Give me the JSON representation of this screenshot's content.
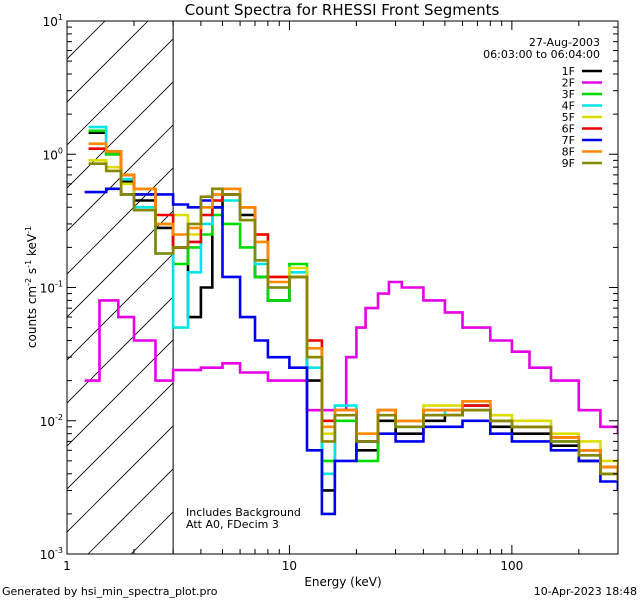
{
  "chart_data": {
    "type": "line",
    "title": "Count Spectra for RHESSI Front Segments",
    "xlabel": "Energy (keV)",
    "ylabel": {
      "base": "counts cm",
      "exp1": "-2",
      "mid": " s",
      "exp2": "-1",
      "unit": " keV",
      "exp3": "-1"
    },
    "xscale": "log",
    "yscale": "log",
    "xlim": [
      1,
      300
    ],
    "ylim": [
      0.001,
      10
    ],
    "x_ticks": [
      {
        "value": 1,
        "label": "1"
      },
      {
        "value": 10,
        "label": "10"
      },
      {
        "value": 100,
        "label": "100"
      }
    ],
    "y_ticks": [
      {
        "value": 0.001,
        "mant": "10",
        "exp": "-3"
      },
      {
        "value": 0.01,
        "mant": "10",
        "exp": "-2"
      },
      {
        "value": 0.1,
        "mant": "10",
        "exp": "-1"
      },
      {
        "value": 1,
        "mant": "10",
        "exp": "0"
      },
      {
        "value": 10,
        "mant": "10",
        "exp": "1"
      }
    ],
    "hatched_region": {
      "x_from": 1,
      "x_to": 3
    },
    "date": "27-Aug-2003",
    "time_range": "06:03:00 to 06:04:00",
    "annotations": [
      "Includes Background",
      "Att A0, FDecim 3"
    ],
    "series": [
      {
        "name": "1F",
        "color": "#000000",
        "points": [
          [
            1.25,
            1.45
          ],
          [
            1.5,
            1.0
          ],
          [
            1.75,
            0.62
          ],
          [
            2,
            0.45
          ],
          [
            2.5,
            0.28
          ],
          [
            3,
            0.2
          ],
          [
            3.5,
            0.06
          ],
          [
            4,
            0.1
          ],
          [
            4.5,
            0.4
          ],
          [
            5,
            0.5
          ],
          [
            6,
            0.35
          ],
          [
            7,
            0.12
          ],
          [
            8,
            0.08
          ],
          [
            10,
            0.12
          ],
          [
            12,
            0.02
          ],
          [
            14,
            0.003
          ],
          [
            16,
            0.012
          ],
          [
            20,
            0.006
          ],
          [
            25,
            0.01
          ],
          [
            30,
            0.008
          ],
          [
            40,
            0.01
          ],
          [
            50,
            0.011
          ],
          [
            60,
            0.012
          ],
          [
            80,
            0.009
          ],
          [
            100,
            0.008
          ],
          [
            150,
            0.0065
          ],
          [
            200,
            0.005
          ],
          [
            250,
            0.004
          ],
          [
            300,
            0.003
          ]
        ]
      },
      {
        "name": "2F",
        "color": "#e600e6",
        "points": [
          [
            1.2,
            0.02
          ],
          [
            1.3,
            0.02
          ],
          [
            1.4,
            0.08
          ],
          [
            1.6,
            0.08
          ],
          [
            1.7,
            0.06
          ],
          [
            2,
            0.04
          ],
          [
            2.5,
            0.02
          ],
          [
            3,
            0.024
          ],
          [
            4,
            0.025
          ],
          [
            5,
            0.027
          ],
          [
            6,
            0.023
          ],
          [
            8,
            0.02
          ],
          [
            10,
            0.02
          ],
          [
            12,
            0.012
          ],
          [
            15,
            0.012
          ],
          [
            18,
            0.03
          ],
          [
            20,
            0.05
          ],
          [
            22,
            0.07
          ],
          [
            25,
            0.09
          ],
          [
            28,
            0.11
          ],
          [
            32,
            0.1
          ],
          [
            40,
            0.08
          ],
          [
            50,
            0.065
          ],
          [
            60,
            0.05
          ],
          [
            80,
            0.04
          ],
          [
            100,
            0.033
          ],
          [
            120,
            0.025
          ],
          [
            150,
            0.02
          ],
          [
            200,
            0.012
          ],
          [
            250,
            0.009
          ],
          [
            300,
            0.008
          ]
        ]
      },
      {
        "name": "3F",
        "color": "#00dd00",
        "points": [
          [
            1.25,
            1.5
          ],
          [
            1.5,
            1.0
          ],
          [
            1.75,
            0.7
          ],
          [
            2,
            0.5
          ],
          [
            2.5,
            0.3
          ],
          [
            3,
            0.15
          ],
          [
            3.5,
            0.2
          ],
          [
            4,
            0.25
          ],
          [
            4.5,
            0.35
          ],
          [
            5,
            0.3
          ],
          [
            6,
            0.2
          ],
          [
            7,
            0.12
          ],
          [
            8,
            0.08
          ],
          [
            10,
            0.15
          ],
          [
            12,
            0.03
          ],
          [
            14,
            0.005
          ],
          [
            16,
            0.01
          ],
          [
            20,
            0.005
          ],
          [
            25,
            0.012
          ],
          [
            30,
            0.01
          ],
          [
            40,
            0.012
          ],
          [
            50,
            0.012
          ],
          [
            60,
            0.013
          ],
          [
            80,
            0.01
          ],
          [
            100,
            0.009
          ],
          [
            150,
            0.007
          ],
          [
            200,
            0.006
          ],
          [
            250,
            0.004
          ],
          [
            300,
            0.0035
          ]
        ]
      },
      {
        "name": "4F",
        "color": "#00e6e6",
        "points": [
          [
            1.25,
            1.6
          ],
          [
            1.5,
            1.05
          ],
          [
            1.75,
            0.65
          ],
          [
            2,
            0.4
          ],
          [
            2.5,
            0.18
          ],
          [
            3,
            0.05
          ],
          [
            3.5,
            0.13
          ],
          [
            4,
            0.3
          ],
          [
            4.5,
            0.45
          ],
          [
            5,
            0.45
          ],
          [
            6,
            0.32
          ],
          [
            7,
            0.15
          ],
          [
            8,
            0.1
          ],
          [
            10,
            0.13
          ],
          [
            12,
            0.025
          ],
          [
            14,
            0.004
          ],
          [
            16,
            0.013
          ],
          [
            20,
            0.007
          ],
          [
            25,
            0.012
          ],
          [
            30,
            0.009
          ],
          [
            40,
            0.011
          ],
          [
            50,
            0.012
          ],
          [
            60,
            0.013
          ],
          [
            80,
            0.01
          ],
          [
            100,
            0.009
          ],
          [
            150,
            0.007
          ],
          [
            200,
            0.0055
          ],
          [
            250,
            0.0045
          ],
          [
            300,
            0.0035
          ]
        ]
      },
      {
        "name": "5F",
        "color": "#dddd00",
        "points": [
          [
            1.25,
            0.9
          ],
          [
            1.5,
            0.8
          ],
          [
            1.75,
            0.6
          ],
          [
            2,
            0.5
          ],
          [
            2.5,
            0.3
          ],
          [
            3,
            0.35
          ],
          [
            3.5,
            0.25
          ],
          [
            4,
            0.4
          ],
          [
            4.5,
            0.5
          ],
          [
            5,
            0.55
          ],
          [
            6,
            0.4
          ],
          [
            7,
            0.25
          ],
          [
            8,
            0.12
          ],
          [
            10,
            0.14
          ],
          [
            12,
            0.03
          ],
          [
            14,
            0.008
          ],
          [
            16,
            0.012
          ],
          [
            20,
            0.008
          ],
          [
            25,
            0.012
          ],
          [
            30,
            0.01
          ],
          [
            40,
            0.013
          ],
          [
            50,
            0.013
          ],
          [
            60,
            0.014
          ],
          [
            80,
            0.011
          ],
          [
            100,
            0.01
          ],
          [
            150,
            0.008
          ],
          [
            200,
            0.007
          ],
          [
            250,
            0.005
          ],
          [
            300,
            0.004
          ]
        ]
      },
      {
        "name": "6F",
        "color": "#ee0000",
        "points": [
          [
            1.25,
            1.1
          ],
          [
            1.5,
            1.05
          ],
          [
            1.75,
            0.7
          ],
          [
            2,
            0.55
          ],
          [
            2.5,
            0.35
          ],
          [
            3,
            0.2
          ],
          [
            3.5,
            0.22
          ],
          [
            4,
            0.35
          ],
          [
            4.5,
            0.45
          ],
          [
            5,
            0.5
          ],
          [
            6,
            0.4
          ],
          [
            7,
            0.25
          ],
          [
            8,
            0.12
          ],
          [
            10,
            0.12
          ],
          [
            12,
            0.04
          ],
          [
            14,
            0.01
          ],
          [
            16,
            0.012
          ],
          [
            20,
            0.007
          ],
          [
            25,
            0.012
          ],
          [
            30,
            0.01
          ],
          [
            40,
            0.012
          ],
          [
            50,
            0.012
          ],
          [
            60,
            0.013
          ],
          [
            80,
            0.01
          ],
          [
            100,
            0.009
          ],
          [
            150,
            0.0075
          ],
          [
            200,
            0.006
          ],
          [
            250,
            0.0045
          ],
          [
            300,
            0.0035
          ]
        ]
      },
      {
        "name": "7F",
        "color": "#0000ee",
        "points": [
          [
            1.2,
            0.52
          ],
          [
            1.5,
            0.55
          ],
          [
            1.75,
            0.5
          ],
          [
            2,
            0.5
          ],
          [
            2.5,
            0.5
          ],
          [
            3,
            0.42
          ],
          [
            3.5,
            0.4
          ],
          [
            4,
            0.45
          ],
          [
            4.5,
            0.4
          ],
          [
            5,
            0.12
          ],
          [
            6,
            0.06
          ],
          [
            7,
            0.04
          ],
          [
            8,
            0.03
          ],
          [
            10,
            0.025
          ],
          [
            12,
            0.006
          ],
          [
            14,
            0.002
          ],
          [
            16,
            0.005
          ],
          [
            20,
            0.007
          ],
          [
            25,
            0.008
          ],
          [
            30,
            0.007
          ],
          [
            40,
            0.009
          ],
          [
            50,
            0.009
          ],
          [
            60,
            0.01
          ],
          [
            80,
            0.008
          ],
          [
            100,
            0.007
          ],
          [
            150,
            0.006
          ],
          [
            200,
            0.005
          ],
          [
            250,
            0.0035
          ],
          [
            300,
            0.003
          ]
        ]
      },
      {
        "name": "8F",
        "color": "#ff8800",
        "points": [
          [
            1.25,
            1.2
          ],
          [
            1.5,
            1.05
          ],
          [
            1.75,
            0.7
          ],
          [
            2,
            0.55
          ],
          [
            2.5,
            0.3
          ],
          [
            3,
            0.25
          ],
          [
            3.5,
            0.28
          ],
          [
            4,
            0.4
          ],
          [
            4.5,
            0.5
          ],
          [
            5,
            0.55
          ],
          [
            6,
            0.4
          ],
          [
            7,
            0.22
          ],
          [
            8,
            0.11
          ],
          [
            10,
            0.12
          ],
          [
            12,
            0.035
          ],
          [
            14,
            0.009
          ],
          [
            16,
            0.012
          ],
          [
            20,
            0.008
          ],
          [
            25,
            0.012
          ],
          [
            30,
            0.01
          ],
          [
            40,
            0.012
          ],
          [
            50,
            0.012
          ],
          [
            60,
            0.014
          ],
          [
            80,
            0.01
          ],
          [
            100,
            0.009
          ],
          [
            150,
            0.0075
          ],
          [
            200,
            0.006
          ],
          [
            250,
            0.0045
          ],
          [
            300,
            0.0035
          ]
        ]
      },
      {
        "name": "9F",
        "color": "#888800",
        "points": [
          [
            1.25,
            0.85
          ],
          [
            1.5,
            0.75
          ],
          [
            1.75,
            0.5
          ],
          [
            2,
            0.38
          ],
          [
            2.5,
            0.18
          ],
          [
            3,
            0.2
          ],
          [
            3.5,
            0.3
          ],
          [
            4,
            0.48
          ],
          [
            4.5,
            0.55
          ],
          [
            5,
            0.5
          ],
          [
            6,
            0.32
          ],
          [
            7,
            0.16
          ],
          [
            8,
            0.1
          ],
          [
            10,
            0.12
          ],
          [
            12,
            0.03
          ],
          [
            14,
            0.007
          ],
          [
            16,
            0.011
          ],
          [
            20,
            0.007
          ],
          [
            25,
            0.011
          ],
          [
            30,
            0.009
          ],
          [
            40,
            0.011
          ],
          [
            50,
            0.011
          ],
          [
            60,
            0.012
          ],
          [
            80,
            0.01
          ],
          [
            100,
            0.009
          ],
          [
            150,
            0.007
          ],
          [
            200,
            0.0055
          ],
          [
            250,
            0.004
          ],
          [
            300,
            0.0035
          ]
        ]
      }
    ]
  },
  "footer": {
    "left": "Generated by hsi_min_spectra_plot.pro",
    "right": "10-Apr-2023 18:48"
  }
}
